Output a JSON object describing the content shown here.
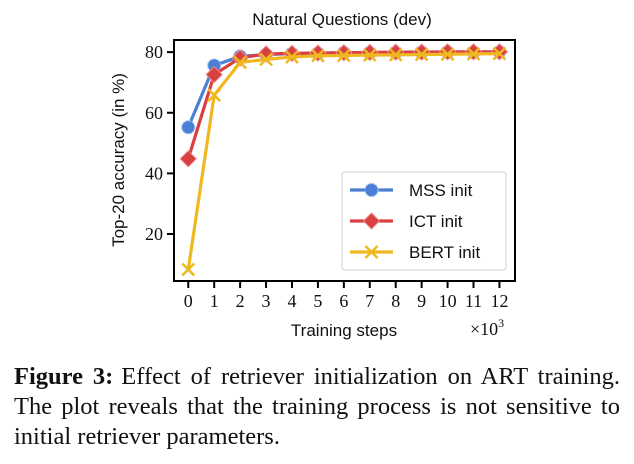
{
  "chart_data": {
    "type": "line",
    "title": "Natural Questions (dev)",
    "xlabel": "Training steps",
    "x_multiplier_label": "×10",
    "x_multiplier_exponent": "3",
    "ylabel": "Top-20 accuracy (in %)",
    "x": [
      0,
      1,
      2,
      3,
      4,
      5,
      6,
      7,
      8,
      9,
      10,
      11,
      12
    ],
    "x_ticks": [
      0,
      1,
      2,
      3,
      4,
      5,
      6,
      7,
      8,
      9,
      10,
      11,
      12
    ],
    "y_ticks": [
      20,
      40,
      60,
      80
    ],
    "xlim": [
      -0.55,
      12.6
    ],
    "ylim": [
      4.5,
      84
    ],
    "grid": false,
    "legend_position": "lower-right",
    "series": [
      {
        "name": "MSS init",
        "color": "#4a7fd4",
        "marker": "circle",
        "values": [
          55.2,
          75.6,
          78.6,
          79.2,
          79.5,
          79.6,
          79.8,
          79.8,
          79.9,
          80.0,
          80.0,
          80.0,
          80.1
        ]
      },
      {
        "name": "ICT init",
        "color": "#d94040",
        "marker": "diamond",
        "values": [
          44.8,
          72.6,
          78.1,
          79.4,
          79.6,
          79.7,
          79.8,
          79.9,
          80.0,
          80.0,
          80.1,
          80.1,
          80.1
        ]
      },
      {
        "name": "BERT init",
        "color": "#f0b820",
        "marker": "x",
        "values": [
          8.3,
          65.8,
          76.6,
          77.6,
          78.4,
          78.8,
          78.9,
          79.0,
          79.1,
          79.2,
          79.3,
          79.4,
          79.5
        ]
      }
    ]
  },
  "caption": {
    "label": "Figure 3:",
    "text": "Effect of retriever initialization on ART training.  The plot reveals that the training process is not sensitive to initial retriever parameters."
  }
}
